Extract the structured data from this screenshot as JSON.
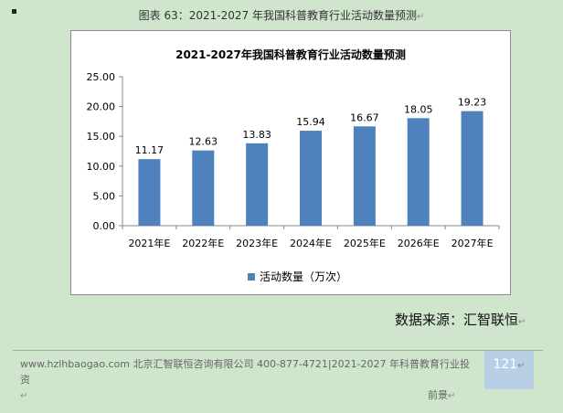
{
  "caption": "图表 63：2021-2027 年我国科普教育行业活动数量预测",
  "chart_data": {
    "type": "bar",
    "title": "2021-2027年我国科普教育行业活动数量预测",
    "categories": [
      "2021年E",
      "2022年E",
      "2023年E",
      "2024年E",
      "2025年E",
      "2026年E",
      "2027年E"
    ],
    "series": [
      {
        "name": "活动数量（万次）",
        "values": [
          11.17,
          12.63,
          13.83,
          15.94,
          16.67,
          18.05,
          19.23
        ]
      }
    ],
    "value_labels": [
      "11.17",
      "12.63",
      "13.83",
      "15.94",
      "16.67",
      "18.05",
      "19.23"
    ],
    "yticks": [
      0,
      5,
      10,
      15,
      20,
      25
    ],
    "ytick_labels": [
      "0.00",
      "5.00",
      "10.00",
      "15.00",
      "20.00",
      "25.00"
    ],
    "ylim": [
      0,
      25
    ],
    "legend_position": "bottom",
    "bar_color": "#4f81bd"
  },
  "source": "数据来源：汇智联恒",
  "footer": {
    "website": "www.hzlhbaogao.com",
    "company": "北京汇智联恒咨询有限公司",
    "phone": "400-877-4721|",
    "report_title": "2021-2027 年科普教育行业投资",
    "report_title_cont": "前景"
  },
  "page_number": "121",
  "return_mark": "↵"
}
